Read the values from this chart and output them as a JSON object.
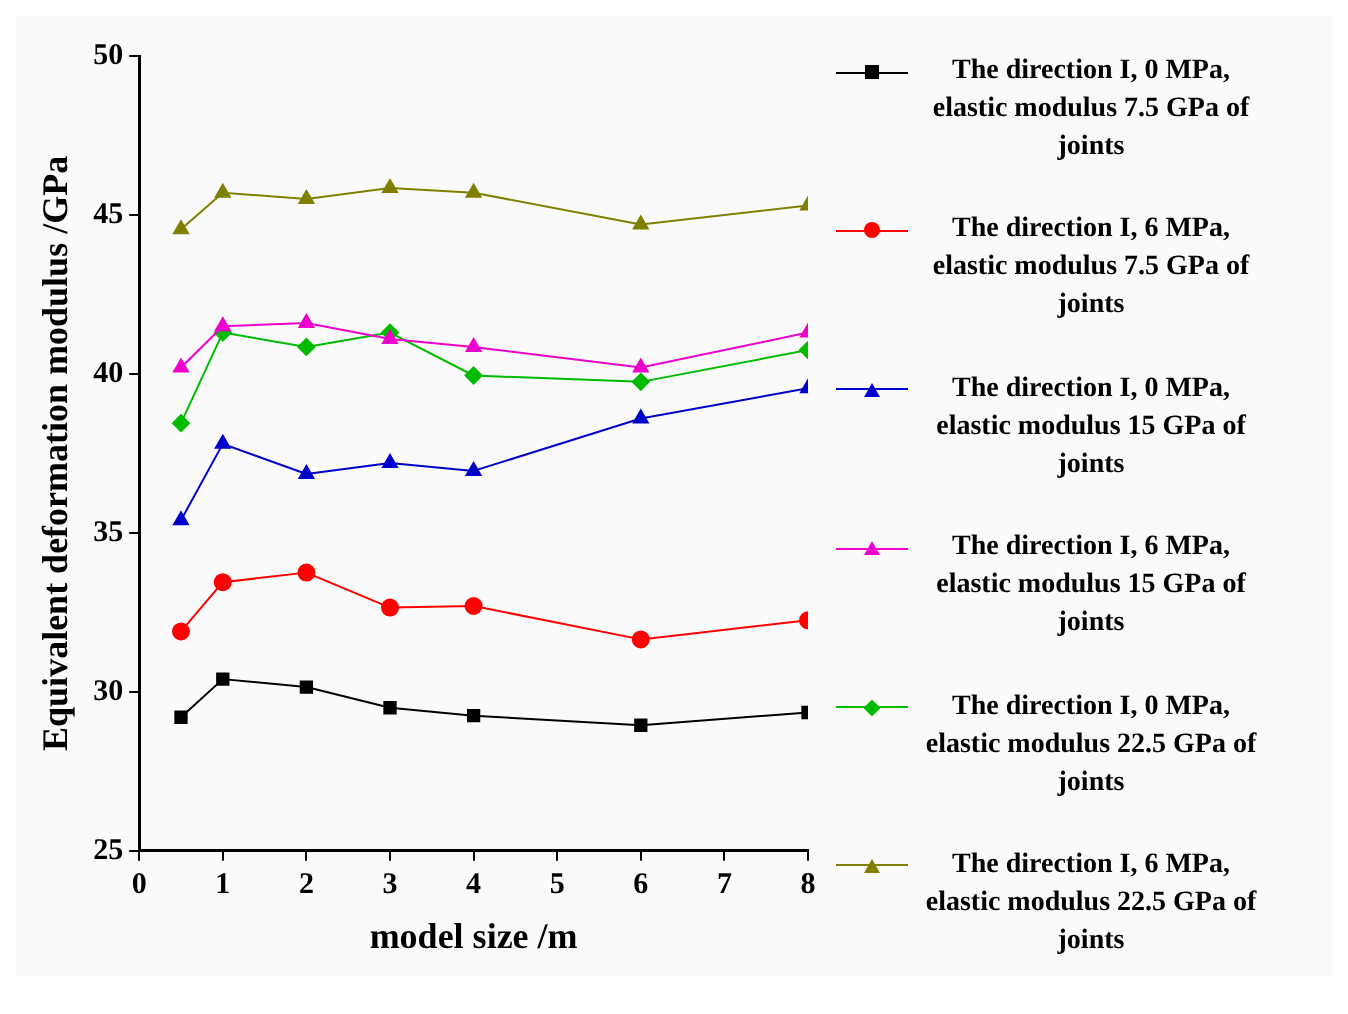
{
  "chart_data": {
    "type": "line",
    "xlabel": "model size /m",
    "ylabel": "Equivalent deformation modulus /GPa",
    "x": [
      0.5,
      1,
      2,
      3,
      4,
      6,
      8
    ],
    "xlim": [
      0,
      8
    ],
    "xticks": [
      0,
      1,
      2,
      3,
      4,
      5,
      6,
      7,
      8
    ],
    "ylim": [
      25,
      50
    ],
    "yticks": [
      25,
      30,
      35,
      40,
      45,
      50
    ],
    "grid": false,
    "legend": "right",
    "series": [
      {
        "name": "The direction I,  0 MPa, elastic modulus 7.5 GPa of joints",
        "color": "#000000",
        "marker": "square",
        "values": [
          29.2,
          30.4,
          30.15,
          29.5,
          29.25,
          28.95,
          29.35
        ]
      },
      {
        "name": "The direction I,  6 MPa, elastic modulus 7.5 GPa of joints",
        "color": "#ff0000",
        "marker": "circle",
        "values": [
          31.9,
          33.45,
          33.75,
          32.65,
          32.7,
          31.65,
          32.25
        ]
      },
      {
        "name": "The direction I,  0 MPa, elastic modulus 15 GPa of joints",
        "color": "#0000cc",
        "marker": "triangle",
        "values": [
          35.4,
          37.8,
          36.85,
          37.2,
          36.95,
          38.6,
          39.55
        ]
      },
      {
        "name": "The direction I,  6 MPa, elastic modulus 15 GPa of joints",
        "color": "#ee00cc",
        "marker": "triangle",
        "values": [
          40.2,
          41.5,
          41.6,
          41.1,
          40.85,
          40.2,
          41.3
        ]
      },
      {
        "name": "The direction I,  0 MPa, elastic modulus 22.5 GPa of joints",
        "color": "#00bb00",
        "marker": "diamond",
        "values": [
          38.45,
          41.3,
          40.85,
          41.3,
          39.95,
          39.75,
          40.75
        ]
      },
      {
        "name": "The direction I,  6 MPa, elastic modulus 22.5 GPa of joints",
        "color": "#808000",
        "marker": "triangle",
        "values": [
          44.55,
          45.7,
          45.5,
          45.85,
          45.7,
          44.7,
          45.3
        ]
      }
    ]
  }
}
